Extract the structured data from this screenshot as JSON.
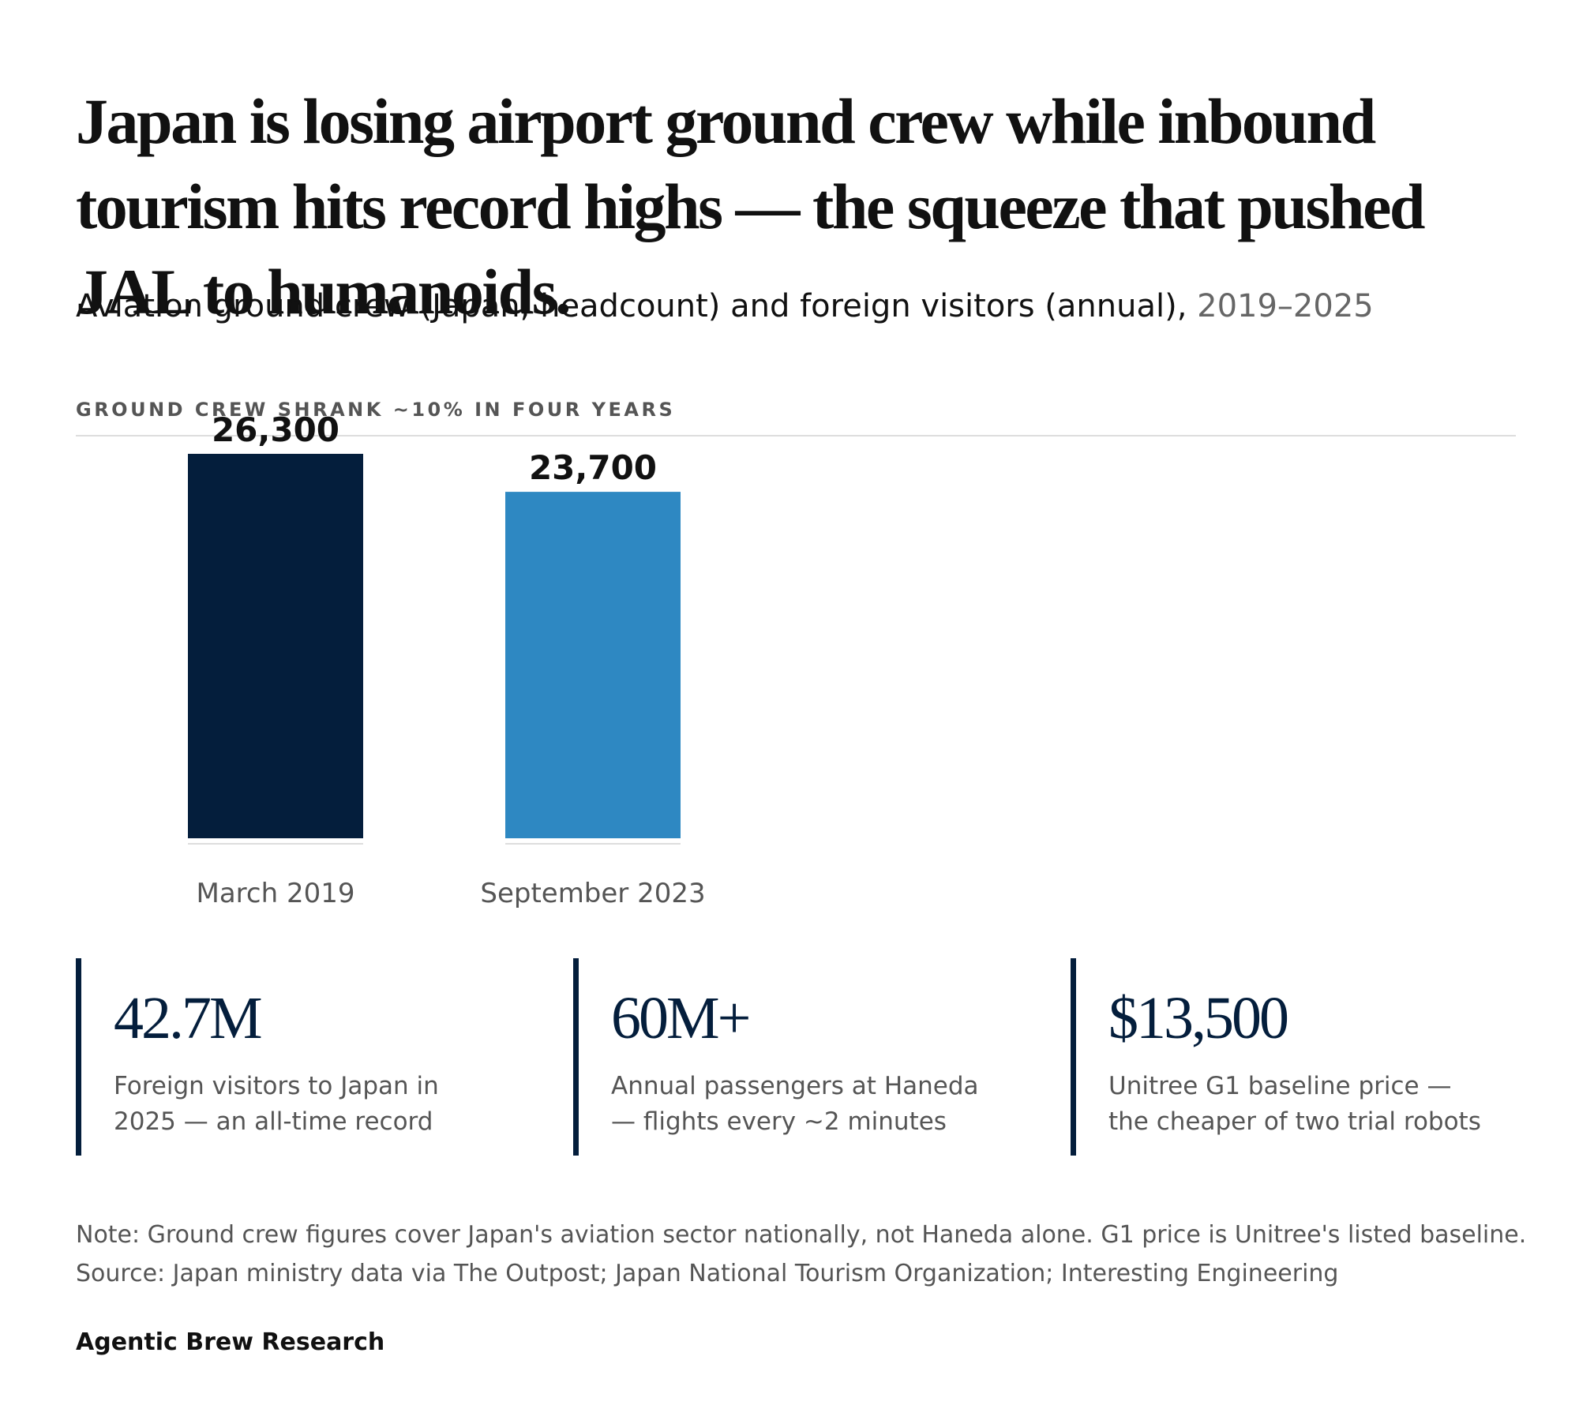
{
  "headline": "Japan is losing airport ground crew while inbound tourism hits record highs — the squeeze that pushed JAL to humanoids.",
  "subtitle": {
    "main": "Aviation ground crew (Japan, headcount) and foreign visitors (annual),",
    "range": "2019–2025"
  },
  "panel": {
    "label": "GROUND CREW SHRANK ~10% IN FOUR YEARS"
  },
  "chart_data": {
    "type": "bar",
    "title": "GROUND CREW SHRANK ~10% IN FOUR YEARS",
    "categories": [
      "March 2019",
      "September 2023"
    ],
    "values": [
      26300,
      23700
    ],
    "value_labels": [
      "26,300",
      "23,700"
    ],
    "colors": [
      "#041e3c",
      "#2e88c2"
    ],
    "xlabel": "",
    "ylabel": "",
    "ylim": [
      0,
      27000
    ],
    "grid": false,
    "legend": "none"
  },
  "stats": [
    {
      "value": "42.7M",
      "desc": "Foreign visitors to Japan in 2025 — an all-time record"
    },
    {
      "value": "60M+",
      "desc": "Annual passengers at Haneda — flights every ~2 minutes"
    },
    {
      "value": "$13,500",
      "desc": "Unitree G1 baseline price — the cheaper of two trial robots"
    }
  ],
  "footnote": {
    "note": "Note: Ground crew figures cover Japan's aviation sector nationally, not Haneda alone. G1 price is Unitree's listed baseline.",
    "source": "Source: Japan ministry data via The Outpost; Japan National Tourism Organization; Interesting Engineering"
  },
  "brand": "Agentic Brew Research",
  "colors": {
    "navy": "#041e3c",
    "blue": "#2e88c2",
    "muted_text": "#555555",
    "rule": "#dddddd"
  }
}
